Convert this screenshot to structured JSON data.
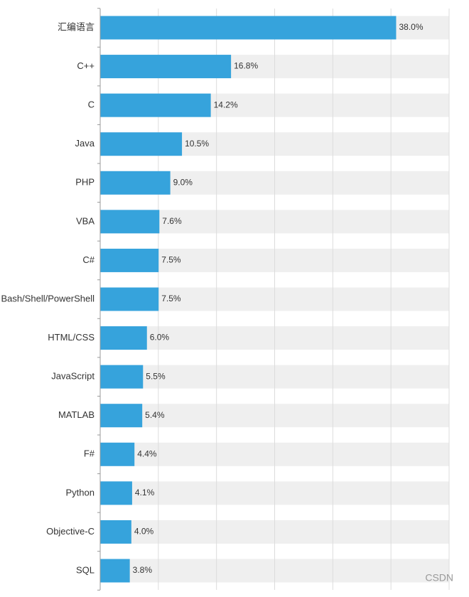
{
  "chart_data": {
    "type": "bar",
    "orientation": "horizontal",
    "categories": [
      "汇编语言",
      "C++",
      "C",
      "Java",
      "PHP",
      "VBA",
      "C#",
      "Bash/Shell/PowerShell",
      "HTML/CSS",
      "JavaScript",
      "MATLAB",
      "F#",
      "Python",
      "Objective-C",
      "SQL"
    ],
    "values": [
      38.0,
      16.8,
      14.2,
      10.5,
      9.0,
      7.6,
      7.5,
      7.5,
      6.0,
      5.5,
      5.4,
      4.4,
      4.1,
      4.0,
      3.8
    ],
    "value_labels": [
      "38.0%",
      "16.8%",
      "14.2%",
      "10.5%",
      "9.0%",
      "7.6%",
      "7.5%",
      "7.5%",
      "6.0%",
      "5.5%",
      "5.4%",
      "4.4%",
      "4.1%",
      "4.0%",
      "3.8%"
    ],
    "color": "#36a3dc",
    "track_color": "#efefef",
    "xlim": [
      0,
      44.8
    ],
    "grid": true
  },
  "watermark": "CSDN"
}
